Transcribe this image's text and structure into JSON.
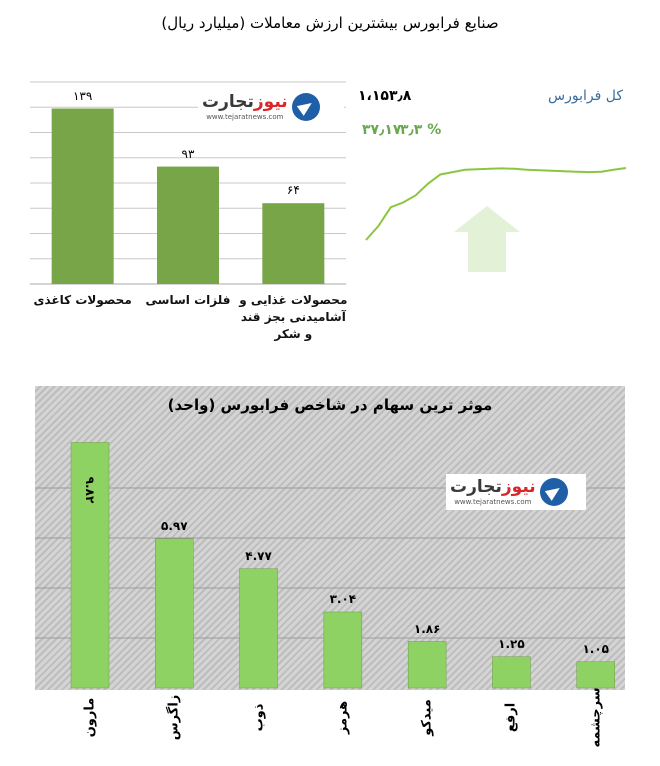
{
  "title": "صنایع فرابورس بیشترین ارزش معاملات  (میلیارد ریال)",
  "logo": {
    "brand_part1": "تجارت",
    "brand_part2": "نیوز",
    "url": "www.tejaratnews.com"
  },
  "index": {
    "name": "کل فرابورس",
    "value": "۱،۱۵۳٫۸",
    "change": "۳۷٫۱۷",
    "percent": "۳٫۳ %",
    "colors": {
      "line": "#8cc640",
      "arrow": "#e3f2d6",
      "name": "#3b6d9c",
      "change": "#6aa84f"
    }
  },
  "chart_data": [
    {
      "type": "bar",
      "title": "صنایع فرابورس بیشترین ارزش معاملات  (میلیارد ریال)",
      "categories": [
        "محصولات کاغذی",
        "فلزات اساسی",
        "محصولات غذایی و آشامیدنی بجز قند و شکر"
      ],
      "values": [
        139,
        93,
        64
      ],
      "value_labels": [
        "۱۳۹",
        "۹۳",
        "۶۴"
      ],
      "ylim": [
        0,
        160
      ],
      "grid": true,
      "color": "#77a548"
    },
    {
      "type": "line",
      "series": [
        {
          "values": [
            1000,
            1030,
            1070,
            1080,
            1095,
            1120,
            1140,
            1145,
            1150,
            1151,
            1152,
            1153,
            1152,
            1150,
            1149,
            1148,
            1147,
            1146,
            1145,
            1146,
            1150,
            1153.8
          ]
        }
      ],
      "grid": false
    },
    {
      "type": "bar",
      "title": "موثر ترین سهام در شاخص فرابورس (واحد)",
      "categories": [
        "مارون",
        "زاگرس",
        "ذوب",
        "هرمز",
        "میدکو",
        "ارفع",
        "سرچشمه"
      ],
      "values": [
        9.82,
        5.97,
        4.77,
        3.04,
        1.86,
        1.25,
        1.05
      ],
      "value_labels": [
        "۹.۸۲",
        "۵.۹۷",
        "۴.۷۷",
        "۳.۰۴",
        "۱.۸۶",
        "۱.۲۵",
        "۱.۰۵"
      ],
      "ylim": [
        0,
        10
      ],
      "grid": true,
      "color": "#8ed264"
    }
  ]
}
